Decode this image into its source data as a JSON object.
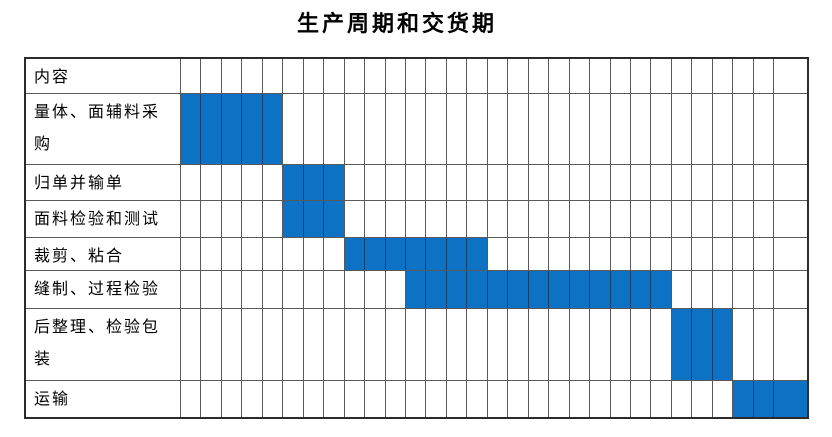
{
  "title": "生产周期和交货期",
  "chart_data": {
    "type": "gantt",
    "title": "生产周期和交货期",
    "header_label": "内容",
    "num_periods": 30,
    "unit": "time-period cells (unlabeled)",
    "rows": [
      {
        "label": "量体、面辅料采购",
        "start": 1,
        "end": 5
      },
      {
        "label": "归单并输单",
        "start": 6,
        "end": 8
      },
      {
        "label": "面料检验和测试",
        "start": 6,
        "end": 8
      },
      {
        "label": "裁剪、粘合",
        "start": 9,
        "end": 15
      },
      {
        "label": "缝制、过程检验",
        "start": 12,
        "end": 24
      },
      {
        "label": "后整理、检验包装",
        "start": 25,
        "end": 27
      },
      {
        "label": "运输",
        "start": 28,
        "end": 30
      }
    ],
    "bar_color": "#0d72c4",
    "grid_color": "#5a5a5a",
    "legend": "none",
    "grid": "on"
  }
}
